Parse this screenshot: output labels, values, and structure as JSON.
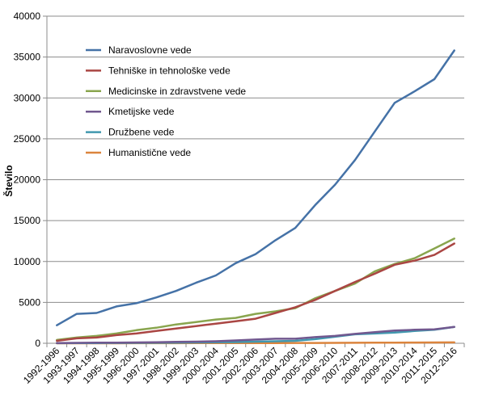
{
  "chart_data": {
    "type": "line",
    "title": "",
    "xlabel": "",
    "ylabel": "Število",
    "ylim": [
      0,
      40000
    ],
    "yticks": [
      0,
      5000,
      10000,
      15000,
      20000,
      25000,
      30000,
      35000,
      40000
    ],
    "grid": "horizontal",
    "legend_position": "top-left inside plot",
    "categories": [
      "1992-1996",
      "1993-1997",
      "1994-1998",
      "1995-1999",
      "1996-2000",
      "1997-2001",
      "1998-2002",
      "1999-2003",
      "2000-2004",
      "2001-2005",
      "2002-2006",
      "2003-2007",
      "2004-2008",
      "2005-2009",
      "2006-2010",
      "2007-2011",
      "2008-2012",
      "2009-2013",
      "2010-2014",
      "2011-2015",
      "2012-2016"
    ],
    "series": [
      {
        "name": "Naravoslovne vede",
        "color": "#4572A7",
        "values": [
          2200,
          3600,
          3700,
          4500,
          4900,
          5600,
          6400,
          7400,
          8300,
          9800,
          10900,
          12600,
          14100,
          16900,
          19400,
          22400,
          25900,
          29400,
          30800,
          32300,
          35800
        ]
      },
      {
        "name": "Tehniške in tehnološke vede",
        "color": "#AA4643",
        "values": [
          300,
          600,
          700,
          1000,
          1200,
          1500,
          1800,
          2100,
          2400,
          2700,
          3000,
          3700,
          4400,
          5300,
          6400,
          7500,
          8500,
          9600,
          10100,
          10800,
          12200
        ]
      },
      {
        "name": "Medicinske in zdravstvene vede",
        "color": "#89A54E",
        "values": [
          400,
          700,
          900,
          1200,
          1600,
          1900,
          2300,
          2600,
          2900,
          3100,
          3600,
          3900,
          4300,
          5500,
          6400,
          7300,
          8800,
          9700,
          10400,
          11600,
          12800
        ]
      },
      {
        "name": "Kmetijske vede",
        "color": "#71588F",
        "values": [
          30,
          50,
          70,
          80,
          100,
          130,
          170,
          200,
          250,
          350,
          450,
          550,
          550,
          750,
          900,
          1150,
          1350,
          1550,
          1650,
          1700,
          2000
        ]
      },
      {
        "name": "Družbene vede",
        "color": "#4198AF",
        "values": [
          10,
          20,
          30,
          40,
          50,
          60,
          80,
          100,
          120,
          150,
          200,
          250,
          300,
          500,
          800,
          1100,
          1200,
          1300,
          1500,
          1650,
          2000
        ]
      },
      {
        "name": "Humanistične vede",
        "color": "#DB843D",
        "values": [
          0,
          0,
          0,
          0,
          5,
          10,
          10,
          15,
          20,
          20,
          25,
          30,
          35,
          40,
          50,
          60,
          70,
          80,
          90,
          100,
          110
        ]
      }
    ]
  }
}
